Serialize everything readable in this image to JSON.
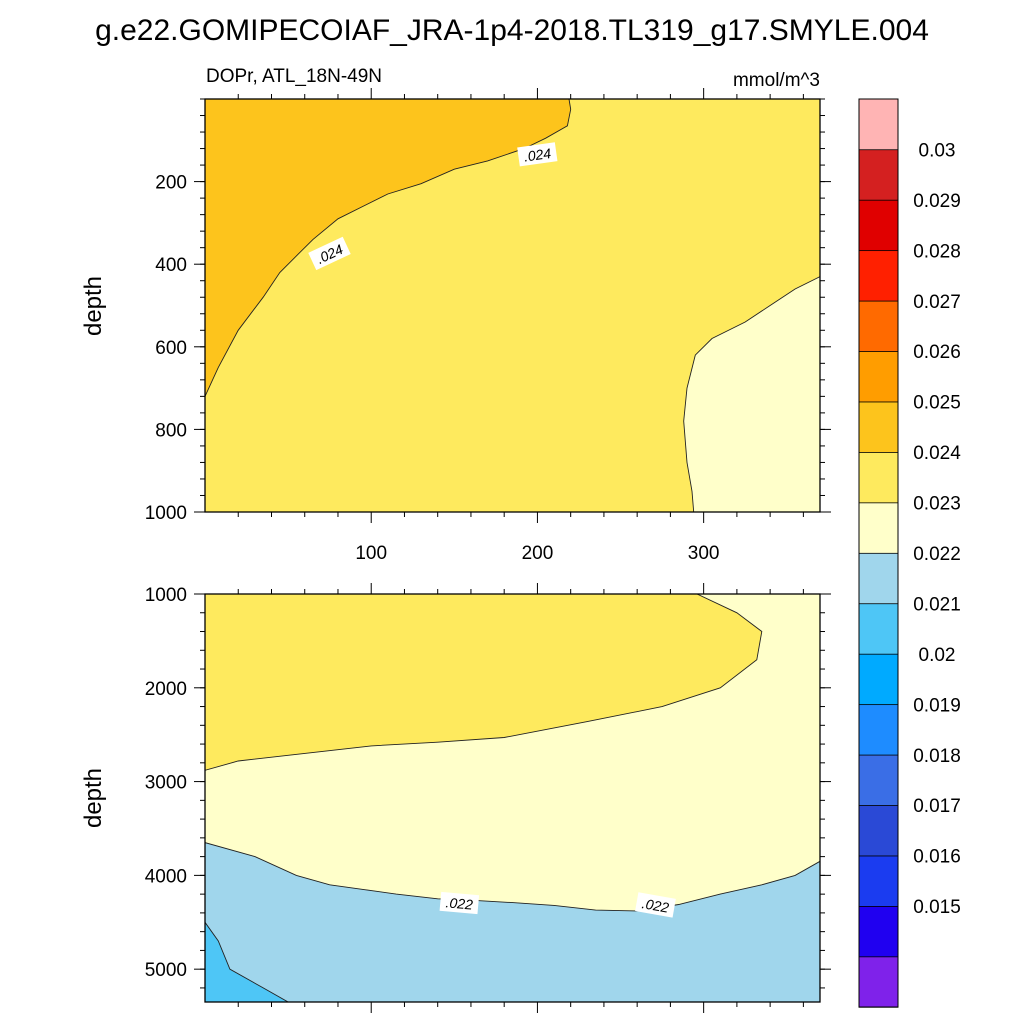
{
  "figure": {
    "title": "g.e22.GOMIPECOIAF_JRA-1p4-2018.TL319_g17.SMYLE.004"
  },
  "colors": {
    "fill_0.024_0.025": "#fdc41c",
    "fill_0.023_0.024": "#feea5e",
    "fill_0.022_0.023": "#ffffca",
    "fill_0.021_0.022": "#a0d6ec",
    "fill_0.020_0.021": "#4ec6f6",
    "contour_line": "#222222"
  },
  "chart_data": [
    {
      "type": "contour",
      "panel": "upper",
      "subtitle_left": "DOPr, ATL_18N-49N",
      "subtitle_right": "mmol/m^3",
      "xlabel": "",
      "ylabel": "depth",
      "xlim": [
        0,
        370
      ],
      "ylim": [
        1000,
        0
      ],
      "x_ticks": [
        100,
        200,
        300
      ],
      "y_ticks": [
        200,
        400,
        600,
        800,
        1000
      ],
      "contour_labels": [
        {
          "text": ".024",
          "x": 200,
          "depth": 135,
          "angle": -8
        },
        {
          "text": ".024",
          "x": 75,
          "depth": 375,
          "angle": -25
        }
      ],
      "regions": [
        {
          "range": [
            0.023,
            0.024
          ],
          "fill": "fill_0.023_0.024",
          "boundary": [
            [
              0,
              0
            ],
            [
              370,
              0
            ],
            [
              370,
              1000
            ],
            [
              0,
              1000
            ]
          ]
        },
        {
          "range": [
            0.024,
            0.025
          ],
          "fill": "fill_0.024_0.025",
          "boundary": [
            [
              0,
              0
            ],
            [
              219,
              0
            ],
            [
              220,
              25
            ],
            [
              218,
              65
            ],
            [
              205,
              95
            ],
            [
              192,
              120
            ],
            [
              170,
              150
            ],
            [
              150,
              170
            ],
            [
              130,
              205
            ],
            [
              110,
              230
            ],
            [
              95,
              260
            ],
            [
              80,
              290
            ],
            [
              65,
              340
            ],
            [
              55,
              380
            ],
            [
              45,
              420
            ],
            [
              35,
              480
            ],
            [
              20,
              560
            ],
            [
              8,
              650
            ],
            [
              0,
              720
            ]
          ]
        },
        {
          "range": [
            0.022,
            0.023
          ],
          "fill": "fill_0.022_0.023",
          "boundary": [
            [
              370,
              430
            ],
            [
              355,
              460
            ],
            [
              340,
              500
            ],
            [
              325,
              540
            ],
            [
              305,
              580
            ],
            [
              295,
              620
            ],
            [
              290,
              700
            ],
            [
              288,
              780
            ],
            [
              290,
              880
            ],
            [
              293,
              950
            ],
            [
              294,
              1000
            ],
            [
              370,
              1000
            ]
          ]
        }
      ]
    },
    {
      "type": "contour",
      "panel": "lower",
      "xlabel": "",
      "ylabel": "depth",
      "xlim": [
        0,
        370
      ],
      "ylim": [
        5350,
        1000
      ],
      "y_ticks": [
        1000,
        2000,
        3000,
        4000,
        5000
      ],
      "contour_labels": [
        {
          "text": ".022",
          "x": 153,
          "depth": 4300,
          "angle": 5
        },
        {
          "text": ".022",
          "x": 271,
          "depth": 4320,
          "angle": 10
        }
      ],
      "regions": [
        {
          "range": [
            0.022,
            0.023
          ],
          "fill": "fill_0.022_0.023",
          "boundary": [
            [
              0,
              1000
            ],
            [
              370,
              1000
            ],
            [
              370,
              5350
            ],
            [
              0,
              5350
            ]
          ]
        },
        {
          "range": [
            0.023,
            0.024
          ],
          "fill": "fill_0.023_0.024",
          "boundary": [
            [
              0,
              1000
            ],
            [
              296,
              1000
            ],
            [
              320,
              1200
            ],
            [
              335,
              1400
            ],
            [
              332,
              1700
            ],
            [
              310,
              2000
            ],
            [
              275,
              2200
            ],
            [
              230,
              2360
            ],
            [
              180,
              2530
            ],
            [
              140,
              2580
            ],
            [
              100,
              2620
            ],
            [
              50,
              2720
            ],
            [
              20,
              2780
            ],
            [
              0,
              2880
            ]
          ]
        },
        {
          "range": [
            0.021,
            0.022
          ],
          "fill": "fill_0.021_0.022",
          "boundary": [
            [
              0,
              3650
            ],
            [
              30,
              3800
            ],
            [
              55,
              4000
            ],
            [
              75,
              4100
            ],
            [
              95,
              4150
            ],
            [
              115,
              4200
            ],
            [
              140,
              4250
            ],
            [
              165,
              4270
            ],
            [
              185,
              4290
            ],
            [
              210,
              4320
            ],
            [
              235,
              4370
            ],
            [
              260,
              4380
            ],
            [
              285,
              4310
            ],
            [
              310,
              4200
            ],
            [
              335,
              4100
            ],
            [
              355,
              4000
            ],
            [
              370,
              3850
            ],
            [
              370,
              5350
            ],
            [
              0,
              5350
            ]
          ]
        },
        {
          "range": [
            0.02,
            0.021
          ],
          "fill": "fill_0.020_0.021",
          "boundary": [
            [
              0,
              4500
            ],
            [
              8,
              4700
            ],
            [
              15,
              5000
            ],
            [
              35,
              5200
            ],
            [
              50,
              5350
            ],
            [
              0,
              5350
            ]
          ]
        }
      ]
    },
    {
      "type": "colorbar",
      "levels": [
        0.015,
        0.016,
        0.017,
        0.018,
        0.019,
        0.02,
        0.021,
        0.022,
        0.023,
        0.024,
        0.025,
        0.026,
        0.027,
        0.028,
        0.029,
        0.03
      ],
      "tick_labels": [
        "0.015",
        "0.016",
        "0.017",
        "0.018",
        "0.019",
        "0.02",
        "0.021",
        "0.022",
        "0.023",
        "0.024",
        "0.025",
        "0.026",
        "0.027",
        "0.028",
        "0.029",
        "0.03"
      ],
      "colors": [
        "#7f22ea",
        "#2000f0",
        "#1b3cf0",
        "#2a49d6",
        "#3a6ee6",
        "#1e8cff",
        "#00aaff",
        "#4ec6f6",
        "#a0d6ec",
        "#ffffca",
        "#feea5e",
        "#fdc41c",
        "#ff9d00",
        "#ff6a00",
        "#ff2000",
        "#e00000",
        "#d42020",
        "#ffb4b4"
      ]
    }
  ]
}
